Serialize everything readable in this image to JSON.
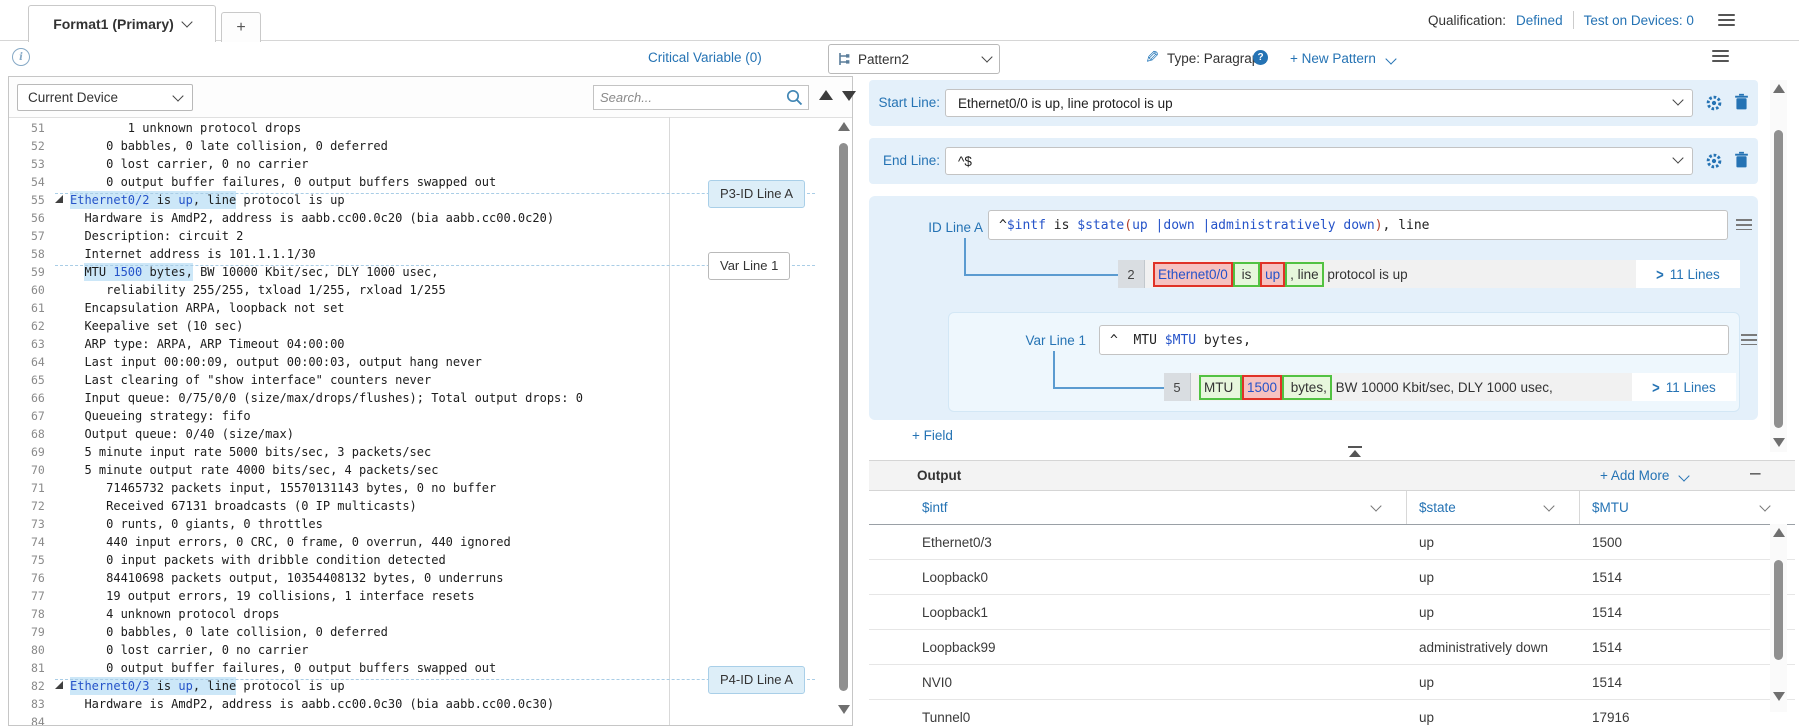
{
  "tab_bar": {
    "active_tab": "Format1 (Primary)",
    "add_tab": "+",
    "qualification_label": "Qualification:",
    "qualification_value": "Defined",
    "test_on_devices": "Test on Devices: 0"
  },
  "toolbar": {
    "critical_variable": "Critical Variable (0)",
    "pattern_name": "Pattern2",
    "type_label": "Type: Paragraph",
    "new_pattern_label": "+ New Pattern"
  },
  "left_panel": {
    "device_selector": "Current Device",
    "search_placeholder": "Search...",
    "annotations": [
      {
        "text": "P3-ID Line A",
        "line": 55,
        "variant": "blue-v"
      },
      {
        "text": "Var Line 1",
        "line": 59,
        "variant": "white-v"
      },
      {
        "text": "P4-ID Line A",
        "line": 82,
        "variant": "blue-v"
      }
    ],
    "code_lines": [
      {
        "n": 51,
        "seg": [
          {
            "t": "        1 unknown protocol drops"
          }
        ]
      },
      {
        "n": 52,
        "seg": [
          {
            "t": "     0 babbles, 0 late collision, 0 deferred"
          }
        ]
      },
      {
        "n": 53,
        "seg": [
          {
            "t": "     0 lost carrier, 0 no carrier"
          }
        ]
      },
      {
        "n": 54,
        "seg": [
          {
            "t": "     0 output buffer failures, 0 output buffers swapped out"
          }
        ]
      },
      {
        "n": 55,
        "fold": true,
        "seg": [
          {
            "t": "Ethernet0/2",
            "hl": true,
            "v": true
          },
          {
            "t": " is ",
            "hl": true
          },
          {
            "t": "up",
            "hl": true,
            "v": true
          },
          {
            "t": ", line",
            "hl": true
          },
          {
            "t": " protocol is up"
          }
        ]
      },
      {
        "n": 56,
        "seg": [
          {
            "t": "  Hardware is AmdP2, address is aabb.cc00.0c20 (bia aabb.cc00.0c20)"
          }
        ]
      },
      {
        "n": 57,
        "seg": [
          {
            "t": "  Description: circuit 2"
          }
        ]
      },
      {
        "n": 58,
        "seg": [
          {
            "t": "  Internet address is 101.1.1.1/30"
          }
        ]
      },
      {
        "n": 59,
        "seg": [
          {
            "t": "  "
          },
          {
            "t": "MTU ",
            "hl": true
          },
          {
            "t": "1500",
            "hl": true,
            "v": true
          },
          {
            "t": " bytes,",
            "hl": true
          },
          {
            "t": " BW 10000 Kbit/sec, DLY 1000 usec,"
          }
        ]
      },
      {
        "n": 60,
        "seg": [
          {
            "t": "     reliability 255/255, txload 1/255, rxload 1/255"
          }
        ]
      },
      {
        "n": 61,
        "seg": [
          {
            "t": "  Encapsulation ARPA, loopback not set"
          }
        ]
      },
      {
        "n": 62,
        "seg": [
          {
            "t": "  Keepalive set (10 sec)"
          }
        ]
      },
      {
        "n": 63,
        "seg": [
          {
            "t": "  ARP type: ARPA, ARP Timeout 04:00:00"
          }
        ]
      },
      {
        "n": 64,
        "seg": [
          {
            "t": "  Last input 00:00:09, output 00:00:03, output hang never"
          }
        ]
      },
      {
        "n": 65,
        "seg": [
          {
            "t": "  Last clearing of \"show interface\" counters never"
          }
        ]
      },
      {
        "n": 66,
        "seg": [
          {
            "t": "  Input queue: 0/75/0/0 (size/max/drops/flushes); Total output drops: 0"
          }
        ]
      },
      {
        "n": 67,
        "seg": [
          {
            "t": "  Queueing strategy: fifo"
          }
        ]
      },
      {
        "n": 68,
        "seg": [
          {
            "t": "  Output queue: 0/40 (size/max)"
          }
        ]
      },
      {
        "n": 69,
        "seg": [
          {
            "t": "  5 minute input rate 5000 bits/sec, 3 packets/sec"
          }
        ]
      },
      {
        "n": 70,
        "seg": [
          {
            "t": "  5 minute output rate 4000 bits/sec, 4 packets/sec"
          }
        ]
      },
      {
        "n": 71,
        "seg": [
          {
            "t": "     71465732 packets input, 15570131143 bytes, 0 no buffer"
          }
        ]
      },
      {
        "n": 72,
        "seg": [
          {
            "t": "     Received 67131 broadcasts (0 IP multicasts)"
          }
        ]
      },
      {
        "n": 73,
        "seg": [
          {
            "t": "     0 runts, 0 giants, 0 throttles"
          }
        ]
      },
      {
        "n": 74,
        "seg": [
          {
            "t": "     440 input errors, 0 CRC, 0 frame, 0 overrun, 440 ignored"
          }
        ]
      },
      {
        "n": 75,
        "seg": [
          {
            "t": "     0 input packets with dribble condition detected"
          }
        ]
      },
      {
        "n": 76,
        "seg": [
          {
            "t": "     84410698 packets output, 10354408132 bytes, 0 underruns"
          }
        ]
      },
      {
        "n": 77,
        "seg": [
          {
            "t": "     19 output errors, 19 collisions, 1 interface resets"
          }
        ]
      },
      {
        "n": 78,
        "seg": [
          {
            "t": "     4 unknown protocol drops"
          }
        ]
      },
      {
        "n": 79,
        "seg": [
          {
            "t": "     0 babbles, 0 late collision, 0 deferred"
          }
        ]
      },
      {
        "n": 80,
        "seg": [
          {
            "t": "     0 lost carrier, 0 no carrier"
          }
        ]
      },
      {
        "n": 81,
        "seg": [
          {
            "t": "     0 output buffer failures, 0 output buffers swapped out"
          }
        ]
      },
      {
        "n": 82,
        "fold": true,
        "seg": [
          {
            "t": "Ethernet0/3",
            "hl": true,
            "v": true
          },
          {
            "t": " is ",
            "hl": true
          },
          {
            "t": "up",
            "hl": true,
            "v": true
          },
          {
            "t": ", line",
            "hl": true
          },
          {
            "t": " protocol is up"
          }
        ]
      },
      {
        "n": 83,
        "seg": [
          {
            "t": "  Hardware is AmdP2, address is aabb.cc00.0c30 (bia aabb.cc00.0c30)"
          }
        ]
      },
      {
        "n": 84,
        "seg": []
      }
    ]
  },
  "pattern_panel": {
    "start_line_label": "Start Line:",
    "start_line_value": "Ethernet0/0 is up, line protocol is up",
    "end_line_label": "End Line:",
    "end_line_value": "^$",
    "id_line": {
      "label": "ID Line A",
      "regex": [
        {
          "t": "^"
        },
        {
          "t": "$intf",
          "c": "v"
        },
        {
          "t": " is "
        },
        {
          "t": "$state",
          "c": "v"
        },
        {
          "t": "(",
          "c": "p"
        },
        {
          "t": "up |down |administratively down",
          "c": "v"
        },
        {
          "t": ")",
          "c": "p"
        },
        {
          "t": ", line"
        }
      ],
      "match_row": {
        "num": "2",
        "tokens": [
          {
            "t": "Ethernet0/0",
            "box": "red",
            "v": true
          },
          {
            "t": " is ",
            "box": "green"
          },
          {
            "t": "up",
            "box": "red",
            "v": true
          },
          {
            "t": ", line",
            "box": "green"
          },
          {
            "t": " protocol is up"
          }
        ],
        "lines_link": "11 Lines"
      }
    },
    "var_line": {
      "label": "Var Line 1",
      "regex": [
        {
          "t": "^  MTU "
        },
        {
          "t": "$MTU",
          "c": "v"
        },
        {
          "t": " bytes,"
        }
      ],
      "match_row": {
        "num": "5",
        "tokens": [
          {
            "t": "MTU ",
            "box": "green"
          },
          {
            "t": "1500",
            "box": "red",
            "v": true
          },
          {
            "t": " bytes,",
            "box": "green"
          },
          {
            "t": " BW 10000 Kbit/sec, DLY 1000 usec,"
          }
        ],
        "lines_link": "11 Lines"
      }
    },
    "add_field_label": "+ Field",
    "output": {
      "title": "Output",
      "add_more_label": "+ Add More",
      "columns": [
        "$intf",
        "$state",
        "$MTU"
      ],
      "rows": [
        [
          "Ethernet0/3",
          "up",
          "1500"
        ],
        [
          "Loopback0",
          "up",
          "1514"
        ],
        [
          "Loopback1",
          "up",
          "1514"
        ],
        [
          "Loopback99",
          "administratively down",
          "1514"
        ],
        [
          "NVI0",
          "up",
          "1514"
        ],
        [
          "Tunnel0",
          "up",
          "17916"
        ]
      ]
    }
  },
  "colors": {
    "accent_blue": "#2573b4",
    "variable_blue": "#2553c9",
    "regex_paren_red": "#b3402a",
    "match_red_border": "#e03226",
    "match_red_bg": "#f6c2c0",
    "match_green_border": "#52c242",
    "match_green_bg": "#e7f7dc",
    "code_highlight": "#cce7f8",
    "card_blue_bg": "#e4f0fa"
  }
}
